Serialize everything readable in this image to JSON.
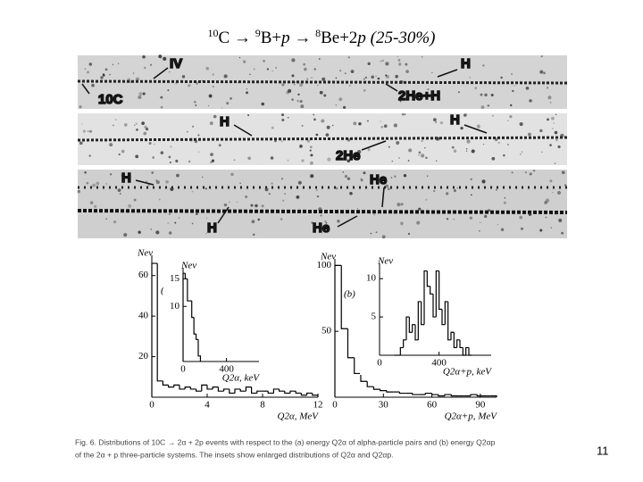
{
  "header": {
    "title_parts": [
      "10",
      "C → ",
      "9",
      "B+",
      "p",
      " → ",
      "8",
      "Be+2",
      "p",
      " (25-30%)"
    ]
  },
  "emulsion": {
    "labels": [
      "IV",
      "H",
      "10C",
      "2He+H",
      "H",
      "H",
      "2He",
      "H",
      "He",
      "H",
      "He"
    ]
  },
  "chart_data": [
    {
      "type": "histogram",
      "panel_label": "(a)",
      "ylabel": "Nev",
      "xlabel": "Q2α, MeV",
      "color": "#000000",
      "bins": [
        0,
        0.4,
        0.8,
        1.2,
        1.6,
        2,
        2.4,
        2.8,
        3.2,
        3.6,
        4,
        4.4,
        4.8,
        5.2,
        5.6,
        6,
        6.4,
        6.8,
        7.2,
        7.6,
        8,
        8.4,
        8.8,
        9.2,
        9.6,
        10,
        10.4,
        10.8,
        11.2,
        11.6,
        12
      ],
      "values": [
        66,
        8,
        6,
        5,
        6,
        4,
        5,
        4,
        3,
        6,
        4,
        5,
        3,
        4,
        2,
        4,
        3,
        5,
        2,
        3,
        3,
        2,
        4,
        3,
        2,
        3,
        2,
        1,
        2,
        1
      ],
      "xlim": [
        0,
        12
      ],
      "ylim": [
        0,
        70
      ],
      "xticks": [
        0,
        4,
        8,
        12
      ],
      "yticks": [
        20,
        40,
        60
      ]
    },
    {
      "type": "histogram",
      "ylabel": "Nev",
      "xlabel": "Q2α, keV",
      "color": "#000000",
      "bins": [
        0,
        20,
        40,
        60,
        80,
        100,
        120,
        140,
        160
      ],
      "values": [
        16,
        15,
        11,
        11,
        8,
        5,
        4,
        1
      ],
      "xlim": [
        0,
        700
      ],
      "ylim": [
        0,
        17
      ],
      "xticks": [
        0,
        400
      ],
      "yticks": [
        10,
        15
      ]
    },
    {
      "type": "histogram",
      "panel_label": "(b)",
      "ylabel": "Nev",
      "xlabel": "Q2α+p, MeV",
      "color": "#000000",
      "bins": [
        0,
        4,
        8,
        12,
        16,
        20,
        24,
        28,
        32,
        36,
        40,
        44,
        48,
        52,
        56,
        60,
        64,
        68,
        72,
        76,
        80,
        84,
        88,
        92,
        96,
        100
      ],
      "values": [
        100,
        52,
        30,
        18,
        12,
        8,
        6,
        5,
        4,
        4,
        3,
        3,
        2,
        2,
        3,
        2,
        1,
        2,
        1,
        1,
        1,
        2,
        1,
        1,
        1
      ],
      "xlim": [
        0,
        100
      ],
      "ylim": [
        0,
        105
      ],
      "xticks": [
        0,
        30,
        60,
        90
      ],
      "yticks": [
        50,
        100
      ]
    },
    {
      "type": "histogram",
      "ylabel": "Nev",
      "xlabel": "Q2α+p, keV",
      "color": "#000000",
      "bins": [
        100,
        120,
        140,
        160,
        180,
        200,
        220,
        240,
        260,
        280,
        300,
        320,
        340,
        360,
        380,
        400,
        420,
        440,
        460,
        480,
        500,
        520,
        540,
        560,
        580,
        600,
        620
      ],
      "values": [
        0,
        0,
        1,
        2,
        5,
        3,
        4,
        2,
        7,
        4,
        11,
        9,
        8,
        5,
        11,
        6,
        4,
        7,
        2,
        3,
        1,
        2,
        1,
        0,
        1,
        0
      ],
      "xlim": [
        0,
        750
      ],
      "ylim": [
        0,
        12
      ],
      "xticks": [
        0,
        400
      ],
      "yticks": [
        5,
        10
      ]
    }
  ],
  "caption": [
    "Fig. 6. Distributions of 10C → 2α + 2p events with respect to the (a) energy Q2α of alpha-particle pairs and (b) energy Q2αp",
    "of the 2α + p three-particle systems. The insets show enlarged distributions of Q2α and Q2αp."
  ],
  "page_number": "11"
}
